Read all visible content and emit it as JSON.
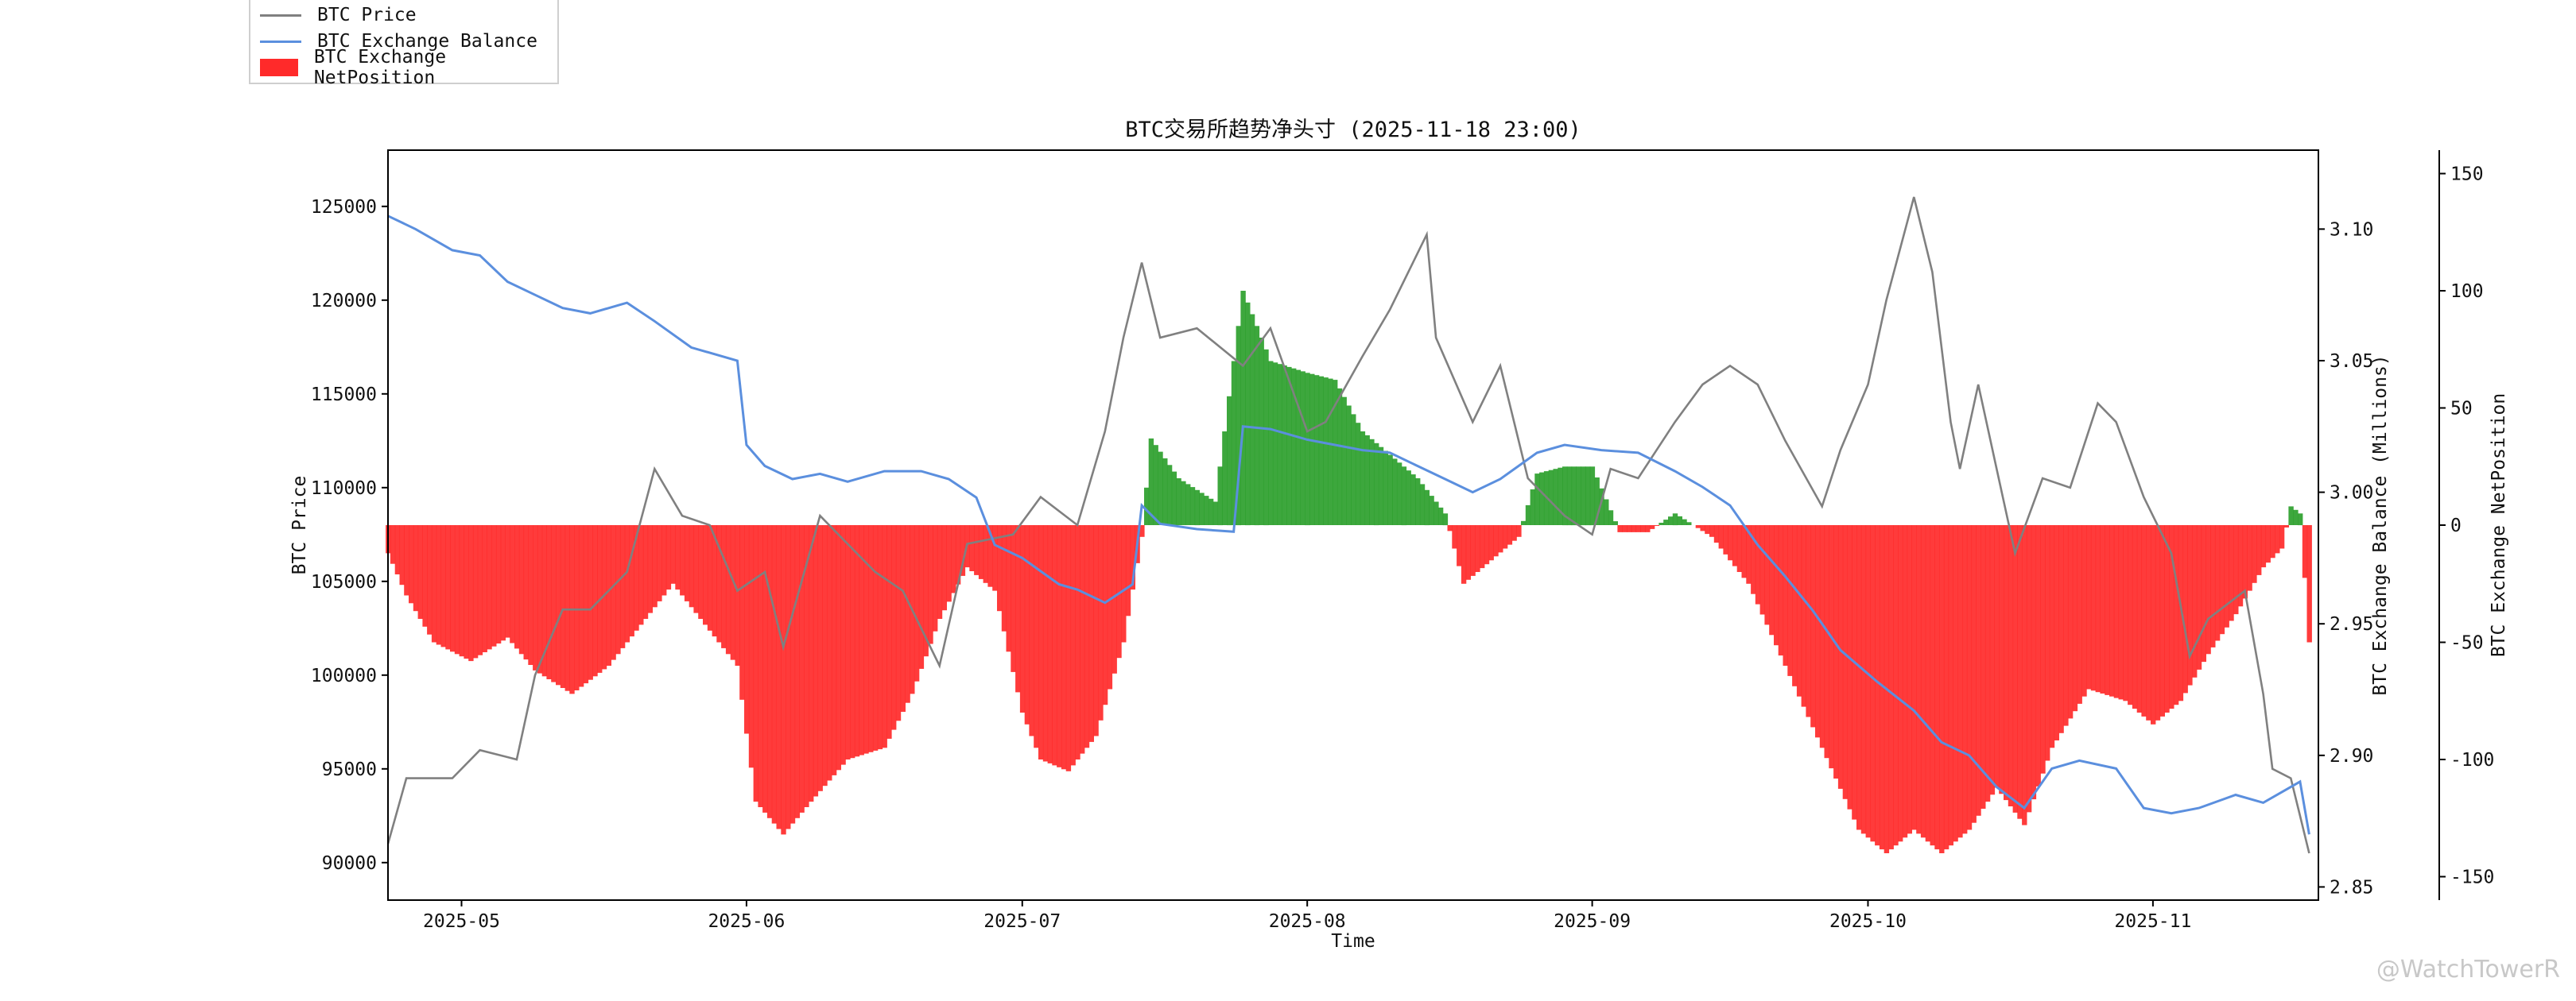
{
  "chart_data": {
    "type": "line",
    "title": "BTC交易所趋势净头寸 (2025-11-18 23:00)",
    "xlabel": "Time",
    "x_ticks": [
      "2025-05",
      "2025-06",
      "2025-07",
      "2025-08",
      "2025-09",
      "2025-10",
      "2025-11"
    ],
    "x_range": [
      "2025-04-23",
      "2025-11-19"
    ],
    "axes": [
      {
        "name": "BTC Price",
        "position": "left",
        "ylim": [
          88000,
          128000
        ],
        "ticks": [
          90000,
          95000,
          100000,
          105000,
          110000,
          115000,
          120000,
          125000
        ]
      },
      {
        "name": "BTC Exchange Balance (Millions)",
        "position": "right",
        "ylim": [
          2.845,
          3.13
        ],
        "ticks": [
          "2.85",
          "2.90",
          "2.95",
          "3.00",
          "3.05",
          "3.10"
        ]
      },
      {
        "name": "BTC Exchange NetPosition",
        "position": "right-outer",
        "ylim": [
          -160,
          160
        ],
        "ticks": [
          -150,
          -100,
          -50,
          0,
          50,
          100,
          150
        ]
      }
    ],
    "series": [
      {
        "name": "BTC Price",
        "type": "line",
        "axis": "left",
        "color": "#808080",
        "points": [
          [
            "2025-04-23",
            91000
          ],
          [
            "2025-04-25",
            94500
          ],
          [
            "2025-04-30",
            94500
          ],
          [
            "2025-05-03",
            96000
          ],
          [
            "2025-05-07",
            95500
          ],
          [
            "2025-05-09",
            100000
          ],
          [
            "2025-05-12",
            103500
          ],
          [
            "2025-05-15",
            103500
          ],
          [
            "2025-05-19",
            105500
          ],
          [
            "2025-05-22",
            111000
          ],
          [
            "2025-05-25",
            108500
          ],
          [
            "2025-05-28",
            108000
          ],
          [
            "2025-05-31",
            104500
          ],
          [
            "2025-06-03",
            105500
          ],
          [
            "2025-06-05",
            101500
          ],
          [
            "2025-06-09",
            108500
          ],
          [
            "2025-06-12",
            107000
          ],
          [
            "2025-06-15",
            105500
          ],
          [
            "2025-06-18",
            104500
          ],
          [
            "2025-06-22",
            100500
          ],
          [
            "2025-06-25",
            107000
          ],
          [
            "2025-06-30",
            107500
          ],
          [
            "2025-07-03",
            109500
          ],
          [
            "2025-07-07",
            108000
          ],
          [
            "2025-07-10",
            113000
          ],
          [
            "2025-07-12",
            118000
          ],
          [
            "2025-07-14",
            122000
          ],
          [
            "2025-07-16",
            118000
          ],
          [
            "2025-07-20",
            118500
          ],
          [
            "2025-07-25",
            116500
          ],
          [
            "2025-07-28",
            118500
          ],
          [
            "2025-08-01",
            113000
          ],
          [
            "2025-08-03",
            113500
          ],
          [
            "2025-08-07",
            117000
          ],
          [
            "2025-08-10",
            119500
          ],
          [
            "2025-08-14",
            123500
          ],
          [
            "2025-08-15",
            118000
          ],
          [
            "2025-08-19",
            113500
          ],
          [
            "2025-08-22",
            116500
          ],
          [
            "2025-08-25",
            110500
          ],
          [
            "2025-08-29",
            108500
          ],
          [
            "2025-09-01",
            107500
          ],
          [
            "2025-09-03",
            111000
          ],
          [
            "2025-09-06",
            110500
          ],
          [
            "2025-09-10",
            113500
          ],
          [
            "2025-09-13",
            115500
          ],
          [
            "2025-09-16",
            116500
          ],
          [
            "2025-09-19",
            115500
          ],
          [
            "2025-09-22",
            112500
          ],
          [
            "2025-09-26",
            109000
          ],
          [
            "2025-09-28",
            112000
          ],
          [
            "2025-10-01",
            115500
          ],
          [
            "2025-10-03",
            120000
          ],
          [
            "2025-10-06",
            125500
          ],
          [
            "2025-10-08",
            121500
          ],
          [
            "2025-10-10",
            113500
          ],
          [
            "2025-10-11",
            111000
          ],
          [
            "2025-10-13",
            115500
          ],
          [
            "2025-10-15",
            111000
          ],
          [
            "2025-10-17",
            106500
          ],
          [
            "2025-10-20",
            110500
          ],
          [
            "2025-10-23",
            110000
          ],
          [
            "2025-10-26",
            114500
          ],
          [
            "2025-10-28",
            113500
          ],
          [
            "2025-10-31",
            109500
          ],
          [
            "2025-11-03",
            106500
          ],
          [
            "2025-11-05",
            101000
          ],
          [
            "2025-11-07",
            103000
          ],
          [
            "2025-11-11",
            104500
          ],
          [
            "2025-11-13",
            99000
          ],
          [
            "2025-11-14",
            95000
          ],
          [
            "2025-11-16",
            94500
          ],
          [
            "2025-11-17",
            92500
          ],
          [
            "2025-11-18",
            90500
          ]
        ]
      },
      {
        "name": "BTC Exchange Balance",
        "type": "line",
        "axis": "right",
        "color": "#5b8fde",
        "points": [
          [
            "2025-04-23",
            3.105
          ],
          [
            "2025-04-26",
            3.1
          ],
          [
            "2025-04-30",
            3.092
          ],
          [
            "2025-05-03",
            3.09
          ],
          [
            "2025-05-06",
            3.08
          ],
          [
            "2025-05-09",
            3.075
          ],
          [
            "2025-05-12",
            3.07
          ],
          [
            "2025-05-15",
            3.068
          ],
          [
            "2025-05-19",
            3.072
          ],
          [
            "2025-05-22",
            3.065
          ],
          [
            "2025-05-26",
            3.055
          ],
          [
            "2025-05-31",
            3.05
          ],
          [
            "2025-06-01",
            3.018
          ],
          [
            "2025-06-03",
            3.01
          ],
          [
            "2025-06-06",
            3.005
          ],
          [
            "2025-06-09",
            3.007
          ],
          [
            "2025-06-12",
            3.004
          ],
          [
            "2025-06-16",
            3.008
          ],
          [
            "2025-06-20",
            3.008
          ],
          [
            "2025-06-23",
            3.005
          ],
          [
            "2025-06-26",
            2.998
          ],
          [
            "2025-06-28",
            2.98
          ],
          [
            "2025-07-01",
            2.975
          ],
          [
            "2025-07-03",
            2.97
          ],
          [
            "2025-07-05",
            2.965
          ],
          [
            "2025-07-07",
            2.963
          ],
          [
            "2025-07-10",
            2.958
          ],
          [
            "2025-07-13",
            2.965
          ],
          [
            "2025-07-14",
            2.995
          ],
          [
            "2025-07-16",
            2.988
          ],
          [
            "2025-07-20",
            2.986
          ],
          [
            "2025-07-24",
            2.985
          ],
          [
            "2025-07-25",
            3.025
          ],
          [
            "2025-07-28",
            3.024
          ],
          [
            "2025-08-01",
            3.02
          ],
          [
            "2025-08-04",
            3.018
          ],
          [
            "2025-08-07",
            3.016
          ],
          [
            "2025-08-10",
            3.015
          ],
          [
            "2025-08-13",
            3.01
          ],
          [
            "2025-08-16",
            3.005
          ],
          [
            "2025-08-19",
            3.0
          ],
          [
            "2025-08-22",
            3.005
          ],
          [
            "2025-08-26",
            3.015
          ],
          [
            "2025-08-29",
            3.018
          ],
          [
            "2025-09-02",
            3.016
          ],
          [
            "2025-09-06",
            3.015
          ],
          [
            "2025-09-10",
            3.008
          ],
          [
            "2025-09-13",
            3.002
          ],
          [
            "2025-09-16",
            2.995
          ],
          [
            "2025-09-19",
            2.98
          ],
          [
            "2025-09-22",
            2.968
          ],
          [
            "2025-09-25",
            2.955
          ],
          [
            "2025-09-28",
            2.94
          ],
          [
            "2025-10-02",
            2.928
          ],
          [
            "2025-10-06",
            2.917
          ],
          [
            "2025-10-09",
            2.905
          ],
          [
            "2025-10-12",
            2.9
          ],
          [
            "2025-10-15",
            2.888
          ],
          [
            "2025-10-18",
            2.88
          ],
          [
            "2025-10-21",
            2.895
          ],
          [
            "2025-10-24",
            2.898
          ],
          [
            "2025-10-28",
            2.895
          ],
          [
            "2025-10-31",
            2.88
          ],
          [
            "2025-11-03",
            2.878
          ],
          [
            "2025-11-06",
            2.88
          ],
          [
            "2025-11-10",
            2.885
          ],
          [
            "2025-11-13",
            2.882
          ],
          [
            "2025-11-17",
            2.89
          ],
          [
            "2025-11-18",
            2.87
          ]
        ]
      },
      {
        "name": "BTC Exchange NetPosition",
        "type": "bar",
        "axis": "right-outer",
        "positive_color": "#2ca02c",
        "negative_color": "#ff2a2a",
        "points": [
          [
            "2025-04-23",
            -12
          ],
          [
            "2025-04-25",
            -30
          ],
          [
            "2025-04-28",
            -50
          ],
          [
            "2025-05-02",
            -58
          ],
          [
            "2025-05-06",
            -48
          ],
          [
            "2025-05-09",
            -62
          ],
          [
            "2025-05-13",
            -72
          ],
          [
            "2025-05-17",
            -60
          ],
          [
            "2025-05-21",
            -40
          ],
          [
            "2025-05-24",
            -25
          ],
          [
            "2025-05-28",
            -45
          ],
          [
            "2025-05-31",
            -60
          ],
          [
            "2025-06-02",
            -118
          ],
          [
            "2025-06-05",
            -132
          ],
          [
            "2025-06-08",
            -118
          ],
          [
            "2025-06-12",
            -100
          ],
          [
            "2025-06-16",
            -95
          ],
          [
            "2025-06-19",
            -72
          ],
          [
            "2025-06-22",
            -40
          ],
          [
            "2025-06-25",
            -18
          ],
          [
            "2025-06-28",
            -28
          ],
          [
            "2025-07-01",
            -80
          ],
          [
            "2025-07-03",
            -100
          ],
          [
            "2025-07-06",
            -105
          ],
          [
            "2025-07-09",
            -90
          ],
          [
            "2025-07-12",
            -50
          ],
          [
            "2025-07-14",
            -5
          ],
          [
            "2025-07-15",
            37
          ],
          [
            "2025-07-18",
            20
          ],
          [
            "2025-07-22",
            10
          ],
          [
            "2025-07-25",
            100
          ],
          [
            "2025-07-28",
            70
          ],
          [
            "2025-08-01",
            65
          ],
          [
            "2025-08-04",
            62
          ],
          [
            "2025-08-07",
            40
          ],
          [
            "2025-08-10",
            30
          ],
          [
            "2025-08-13",
            20
          ],
          [
            "2025-08-16",
            5
          ],
          [
            "2025-08-18",
            -25
          ],
          [
            "2025-08-21",
            -15
          ],
          [
            "2025-08-24",
            -5
          ],
          [
            "2025-08-26",
            22
          ],
          [
            "2025-08-29",
            25
          ],
          [
            "2025-09-01",
            25
          ],
          [
            "2025-09-04",
            -3
          ],
          [
            "2025-09-07",
            -3
          ],
          [
            "2025-09-10",
            5
          ],
          [
            "2025-09-14",
            -5
          ],
          [
            "2025-09-18",
            -25
          ],
          [
            "2025-09-22",
            -60
          ],
          [
            "2025-09-26",
            -95
          ],
          [
            "2025-09-30",
            -130
          ],
          [
            "2025-10-03",
            -140
          ],
          [
            "2025-10-06",
            -130
          ],
          [
            "2025-10-09",
            -140
          ],
          [
            "2025-10-12",
            -130
          ],
          [
            "2025-10-15",
            -112
          ],
          [
            "2025-10-18",
            -128
          ],
          [
            "2025-10-21",
            -95
          ],
          [
            "2025-10-25",
            -70
          ],
          [
            "2025-10-29",
            -75
          ],
          [
            "2025-11-01",
            -85
          ],
          [
            "2025-11-04",
            -75
          ],
          [
            "2025-11-07",
            -55
          ],
          [
            "2025-11-10",
            -38
          ],
          [
            "2025-11-13",
            -18
          ],
          [
            "2025-11-15",
            -10
          ],
          [
            "2025-11-16",
            8
          ],
          [
            "2025-11-17",
            5
          ],
          [
            "2025-11-18",
            -50
          ]
        ]
      }
    ],
    "legend": {
      "placement": "top-left"
    },
    "grid": false
  },
  "watermark": "@WatchTowerR"
}
